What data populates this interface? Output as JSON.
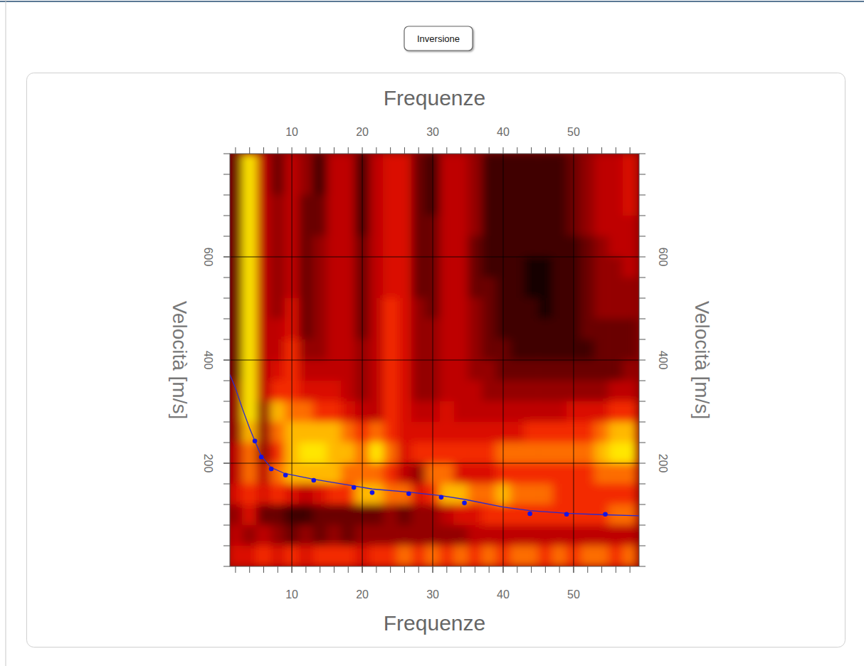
{
  "toolbar": {
    "button": "Inversione"
  },
  "chart_data": {
    "type": "heatmap",
    "x_label": "Frequenze",
    "y_label": "Velocità [m/s]",
    "xlim": [
      1.2,
      59.3
    ],
    "ylim": [
      0,
      800
    ],
    "xticks": [
      10,
      20,
      30,
      40,
      50
    ],
    "yticks": [
      200,
      400,
      600
    ],
    "grid": true,
    "zlim": [
      0,
      9
    ],
    "cell_x": [
      2,
      4,
      6,
      8,
      10,
      12,
      14,
      16,
      18,
      20,
      22,
      24,
      26,
      28,
      30,
      32,
      34,
      36,
      38,
      40,
      42,
      44,
      46,
      48,
      50,
      52,
      54,
      56,
      58
    ],
    "cell_y": [
      780,
      740,
      700,
      660,
      620,
      580,
      540,
      500,
      460,
      420,
      380,
      340,
      300,
      260,
      220,
      180,
      140,
      100,
      60,
      20
    ],
    "z": [
      [
        2,
        9,
        4,
        2,
        4,
        3,
        1,
        4,
        4,
        1,
        4,
        5,
        5,
        2,
        1,
        4,
        4,
        3,
        1,
        1,
        1,
        1,
        1,
        1,
        2,
        3,
        4,
        4,
        5
      ],
      [
        2,
        9,
        4,
        2,
        4,
        3,
        1,
        4,
        4,
        1,
        4,
        5,
        5,
        2,
        1,
        4,
        4,
        3,
        1,
        1,
        1,
        1,
        1,
        1,
        2,
        3,
        4,
        4,
        5
      ],
      [
        2,
        9,
        4,
        3,
        4,
        2,
        2,
        4,
        4,
        1,
        4,
        5,
        5,
        2,
        1,
        4,
        4,
        3,
        1,
        1,
        1,
        1,
        1,
        1,
        2,
        3,
        4,
        4,
        5
      ],
      [
        2,
        9,
        4,
        3,
        4,
        2,
        2,
        4,
        4,
        1,
        4,
        5,
        5,
        2,
        2,
        4,
        4,
        3,
        1,
        1,
        1,
        1,
        1,
        1,
        2,
        3,
        4,
        4,
        4
      ],
      [
        2,
        9,
        4,
        3,
        4,
        2,
        3,
        4,
        4,
        2,
        4,
        5,
        5,
        2,
        2,
        4,
        4,
        2,
        1,
        1,
        1,
        1,
        1,
        1,
        1,
        2,
        3,
        4,
        4
      ],
      [
        2,
        9,
        4,
        3,
        4,
        2,
        3,
        4,
        4,
        2,
        4,
        5,
        5,
        2,
        2,
        4,
        4,
        2,
        1,
        1,
        1,
        0,
        0,
        1,
        1,
        2,
        3,
        3,
        4
      ],
      [
        2,
        9,
        4,
        3,
        4,
        2,
        3,
        4,
        4,
        2,
        4,
        5,
        5,
        2,
        2,
        4,
        4,
        2,
        2,
        1,
        1,
        0,
        0,
        1,
        1,
        2,
        3,
        3,
        3
      ],
      [
        2,
        9,
        4,
        3,
        5,
        2,
        3,
        4,
        4,
        2,
        4,
        6,
        5,
        3,
        2,
        4,
        4,
        3,
        2,
        1,
        1,
        1,
        0,
        1,
        1,
        2,
        3,
        3,
        3
      ],
      [
        2,
        9,
        4,
        4,
        5,
        2,
        3,
        4,
        4,
        2,
        4,
        6,
        5,
        3,
        3,
        4,
        4,
        3,
        2,
        1,
        1,
        1,
        1,
        1,
        1,
        2,
        2,
        2,
        2
      ],
      [
        2,
        9,
        4,
        4,
        6,
        3,
        3,
        4,
        4,
        3,
        4,
        6,
        5,
        3,
        3,
        4,
        4,
        3,
        2,
        2,
        1,
        1,
        1,
        1,
        1,
        1,
        2,
        2,
        2
      ],
      [
        2,
        9,
        4,
        5,
        6,
        4,
        4,
        4,
        4,
        3,
        4,
        6,
        5,
        3,
        3,
        4,
        4,
        3,
        3,
        2,
        2,
        2,
        2,
        2,
        2,
        2,
        2,
        2,
        3
      ],
      [
        3,
        9,
        4,
        6,
        6,
        5,
        5,
        5,
        4,
        3,
        4,
        6,
        5,
        3,
        3,
        4,
        4,
        4,
        3,
        3,
        3,
        3,
        3,
        3,
        3,
        3,
        3,
        4,
        4
      ],
      [
        3,
        9,
        3,
        8,
        7,
        7,
        6,
        6,
        5,
        4,
        4,
        6,
        5,
        4,
        4,
        5,
        4,
        4,
        4,
        4,
        4,
        4,
        4,
        4,
        5,
        5,
        5,
        6,
        6
      ],
      [
        3,
        8,
        3,
        7,
        8,
        8,
        8,
        8,
        7,
        6,
        7,
        6,
        5,
        5,
        5,
        5,
        5,
        5,
        5,
        5,
        5,
        6,
        6,
        6,
        6,
        6,
        7,
        8,
        8
      ],
      [
        4,
        7,
        3,
        6,
        8,
        9,
        9,
        8,
        8,
        7,
        9,
        7,
        5,
        6,
        6,
        6,
        6,
        6,
        6,
        7,
        7,
        7,
        7,
        7,
        7,
        7,
        8,
        9,
        9
      ],
      [
        4,
        7,
        4,
        7,
        8,
        8,
        8,
        8,
        7,
        7,
        7,
        6,
        4,
        3,
        7,
        7,
        5,
        5,
        5,
        6,
        6,
        6,
        6,
        6,
        6,
        6,
        7,
        7,
        7
      ],
      [
        5,
        6,
        5,
        6,
        5,
        4,
        5,
        6,
        6,
        8,
        8,
        7,
        7,
        5,
        6,
        8,
        8,
        7,
        7,
        8,
        7,
        7,
        7,
        6,
        6,
        6,
        6,
        6,
        6
      ],
      [
        3,
        5,
        2,
        2,
        1,
        1,
        2,
        2,
        2,
        2,
        2,
        3,
        2,
        3,
        3,
        4,
        5,
        5,
        6,
        6,
        6,
        6,
        6,
        6,
        6,
        6,
        6,
        7,
        7
      ],
      [
        4,
        3,
        4,
        3,
        2,
        3,
        2,
        3,
        2,
        3,
        3,
        3,
        3,
        3,
        3,
        3,
        3,
        4,
        4,
        4,
        4,
        4,
        4,
        4,
        4,
        4,
        4,
        4,
        4
      ],
      [
        5,
        5,
        6,
        5,
        6,
        5,
        6,
        6,
        6,
        5,
        6,
        6,
        7,
        6,
        7,
        6,
        7,
        6,
        7,
        6,
        7,
        7,
        6,
        7,
        6,
        7,
        7,
        6,
        7
      ]
    ],
    "series": [
      {
        "type": "scatter",
        "color": "#1414e6",
        "marker": "circle",
        "x": [
          4.75,
          5.66,
          7.07,
          9.1,
          13.1,
          18.8,
          21.4,
          26.6,
          31.2,
          34.5,
          43.8,
          49.0,
          54.5
        ],
        "values": [
          243,
          212,
          189,
          177,
          167,
          153,
          143,
          141,
          134,
          123,
          102,
          101,
          101
        ]
      },
      {
        "type": "line",
        "color": "#2a2ad2",
        "line_style": "solid",
        "x": [
          1.2,
          2,
          3,
          4,
          4.75,
          5.66,
          7,
          9,
          13,
          18.8,
          21.4,
          26.6,
          31.2,
          34.5,
          40,
          43.8,
          49,
          54.5,
          59.3
        ],
        "values": [
          372,
          345,
          305,
          268,
          243,
          214,
          192,
          180,
          169,
          156,
          150,
          144,
          137,
          130,
          115,
          108,
          103,
          100,
          98
        ]
      }
    ]
  }
}
